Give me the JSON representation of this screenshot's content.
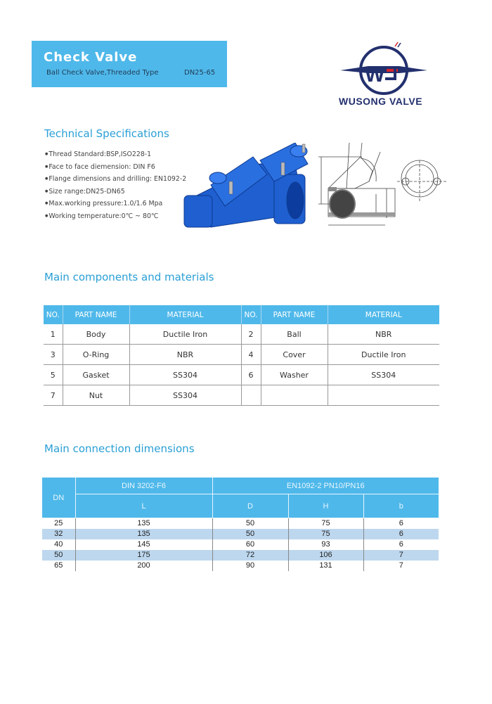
{
  "header": {
    "title": "Check Valve",
    "subtitle": "Ball Check Valve,Threaded Type",
    "size": "DN25-65",
    "brand": "WUSONG VALVE",
    "brand_color": "#23306e",
    "accent_color": "#4fb8ea"
  },
  "specs": {
    "heading": "Technical Specifications",
    "items": [
      "Thread Standard:BSP,ISO228-1",
      "Face to face diemension: DIN F6",
      "Flange dimensions and drilling: EN1092-2",
      "Size range:DN25-DN65",
      "Max.working pressure:1.0/1.6 Mpa",
      "Working temperature:0℃ ~ 80℃"
    ]
  },
  "components": {
    "heading": "Main components and materials",
    "headers": [
      "NO.",
      "PART NAME",
      "MATERIAL",
      "NO.",
      "PART NAME",
      "MATERIAL"
    ],
    "rows": [
      [
        "1",
        "Body",
        "Ductile Iron",
        "2",
        "Ball",
        "NBR"
      ],
      [
        "3",
        "O-Ring",
        "NBR",
        "4",
        "Cover",
        "Ductile Iron"
      ],
      [
        "5",
        "Gasket",
        "SS304",
        "6",
        "Washer",
        "SS304"
      ],
      [
        "7",
        "Nut",
        "SS304",
        "",
        "",
        ""
      ]
    ]
  },
  "dimensions": {
    "heading": "Main connection dimensions",
    "group_headers": [
      "DN",
      "DIN 3202-F6",
      "EN1092-2    PN10/PN16"
    ],
    "sub_headers": [
      "L",
      "D",
      "H",
      "b"
    ],
    "rows": [
      [
        "25",
        "135",
        "50",
        "75",
        "6"
      ],
      [
        "32",
        "135",
        "50",
        "75",
        "6"
      ],
      [
        "40",
        "145",
        "60",
        "93",
        "6"
      ],
      [
        "50",
        "175",
        "72",
        "106",
        "7"
      ],
      [
        "65",
        "200",
        "90",
        "131",
        "7"
      ]
    ],
    "stripe_color": "#bdd7ee"
  }
}
